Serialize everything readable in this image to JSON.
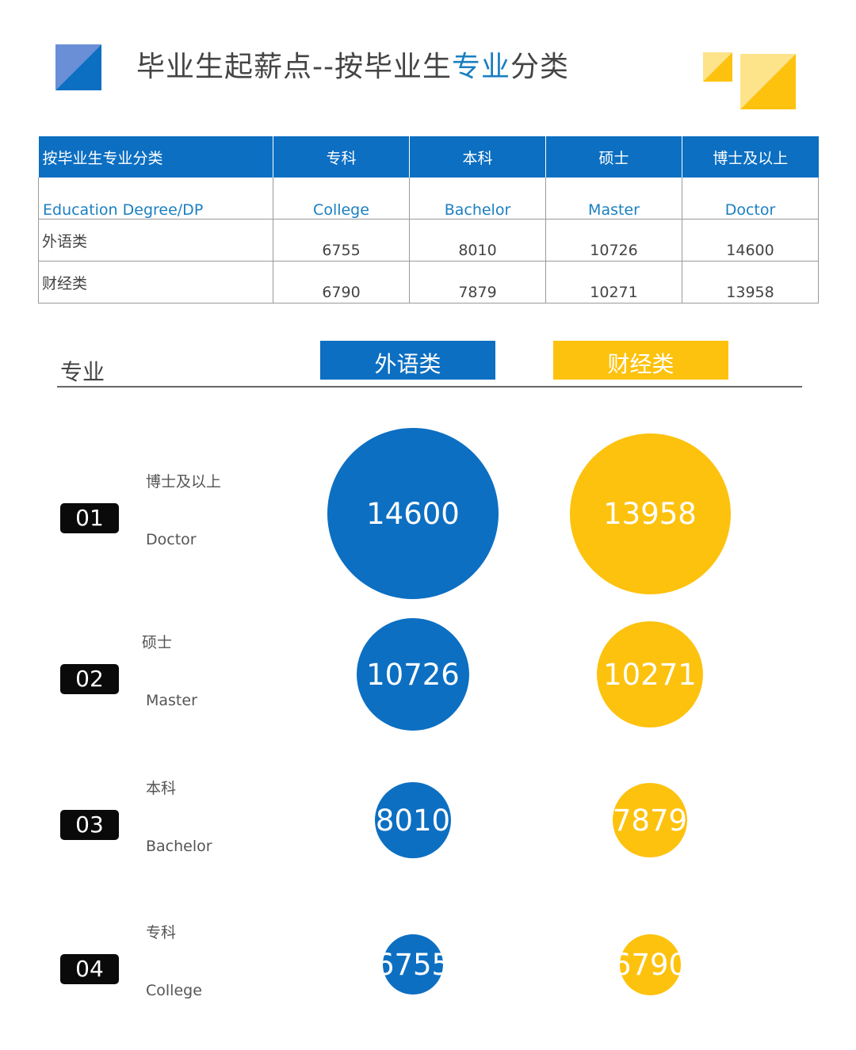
{
  "header": {
    "title_part1": "毕业生起薪点--按毕业生",
    "title_highlight": "专业",
    "title_part2": "分类"
  },
  "colors": {
    "blue": "#0c6fc2",
    "yellow": "#fdc20e",
    "accent_text": "#1a7fc1"
  },
  "table": {
    "headers": [
      "按毕业生专业分类",
      "专科",
      "本科",
      "硕士",
      "博士及以上"
    ],
    "subheaders": [
      "Education  Degree/DP",
      "College",
      "Bachelor",
      "Master",
      "Doctor"
    ],
    "rows": [
      {
        "label": "外语类",
        "values": [
          "6755",
          "8010",
          "10726",
          "14600"
        ]
      },
      {
        "label": "财经类",
        "values": [
          "6790",
          "7879",
          "10271",
          "13958"
        ]
      }
    ]
  },
  "legend": {
    "axis_label": "专业",
    "series_a": "外语类",
    "series_b": "财经类"
  },
  "chart_data": {
    "type": "bubble",
    "categories": [
      "博士及以上",
      "硕士",
      "本科",
      "专科"
    ],
    "categories_en": [
      "Doctor",
      "Master",
      "Bachelor",
      "College"
    ],
    "ranks": [
      "01",
      "02",
      "03",
      "04"
    ],
    "series": [
      {
        "name": "外语类",
        "values": [
          14600,
          10726,
          8010,
          6755
        ]
      },
      {
        "name": "财经类",
        "values": [
          13958,
          10271,
          7879,
          6790
        ]
      }
    ]
  }
}
